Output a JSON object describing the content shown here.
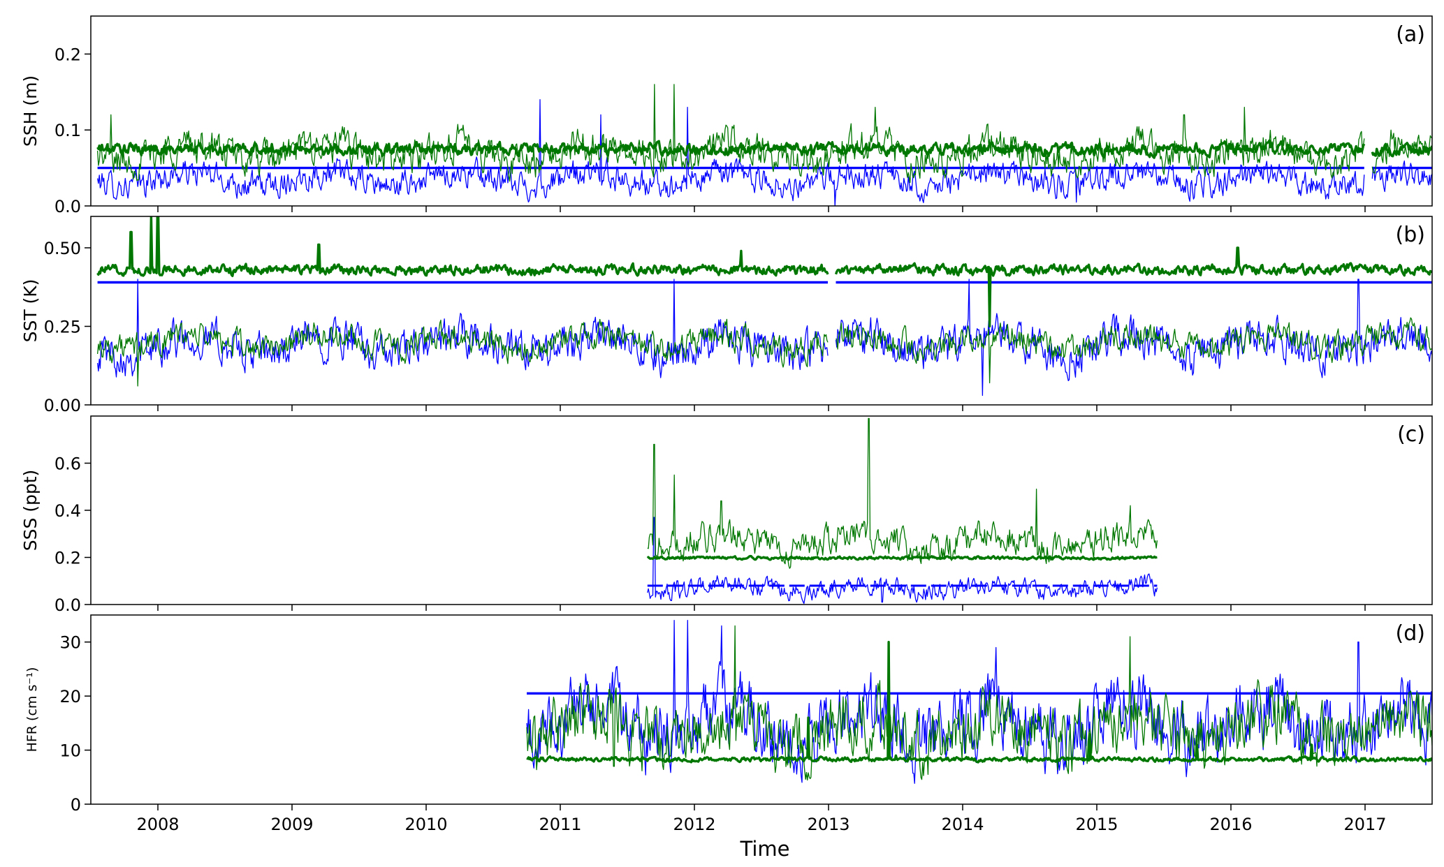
{
  "figure": {
    "xlabel": "Time",
    "x_tick_labels": [
      "2008",
      "2009",
      "2010",
      "2011",
      "2012",
      "2013",
      "2014",
      "2015",
      "2016",
      "2017"
    ]
  },
  "chart_data": [
    {
      "type": "line",
      "panel_tag": "(a)",
      "ylabel": "SSH (m)",
      "xlim": [
        2007.5,
        2017.5
      ],
      "ylim": [
        0.0,
        0.25
      ],
      "y_ticks": [
        0.0,
        0.1,
        0.2
      ],
      "y_tick_labels": [
        "0.0",
        "0.1",
        "0.2"
      ],
      "gaps": [
        [
          2017.0,
          2017.05
        ]
      ],
      "series": [
        {
          "color": "#0000ff",
          "style": "thin",
          "kind": "noisy",
          "x_range": [
            2007.55,
            2017.5
          ],
          "base": 0.035,
          "amp": 0.014,
          "spikes": [
            [
              2010.85,
              0.14
            ],
            [
              2011.3,
              0.12
            ],
            [
              2011.95,
              0.13
            ],
            [
              2013.05,
              0.0
            ],
            [
              2014.85,
              0.005
            ]
          ]
        },
        {
          "color": "#0000ff",
          "style": "thick",
          "kind": "flat",
          "x_range": [
            2007.55,
            2017.5
          ],
          "value": 0.05
        },
        {
          "color": "#007700",
          "style": "thin",
          "kind": "noisy",
          "x_range": [
            2007.55,
            2017.5
          ],
          "base": 0.07,
          "amp": 0.018,
          "spikes": [
            [
              2007.65,
              0.12
            ],
            [
              2011.7,
              0.16
            ],
            [
              2011.85,
              0.16
            ],
            [
              2013.35,
              0.13
            ],
            [
              2015.65,
              0.12
            ],
            [
              2016.1,
              0.13
            ]
          ]
        },
        {
          "color": "#007700",
          "style": "thick",
          "kind": "noisy",
          "x_range": [
            2007.55,
            2017.5
          ],
          "base": 0.075,
          "amp": 0.006,
          "spikes": []
        }
      ]
    },
    {
      "type": "line",
      "panel_tag": "(b)",
      "ylabel": "SST (K)",
      "xlim": [
        2007.5,
        2017.5
      ],
      "ylim": [
        0.0,
        0.6
      ],
      "y_ticks": [
        0.0,
        0.25,
        0.5
      ],
      "y_tick_labels": [
        "0.00",
        "0.25",
        "0.50"
      ],
      "gaps": [
        [
          2013.0,
          2013.05
        ]
      ],
      "series": [
        {
          "color": "#0000ff",
          "style": "thin",
          "kind": "noisy",
          "x_range": [
            2007.55,
            2017.5
          ],
          "base": 0.19,
          "amp": 0.05,
          "spikes": [
            [
              2007.85,
              0.4
            ],
            [
              2011.85,
              0.4
            ],
            [
              2014.15,
              0.03
            ],
            [
              2014.05,
              0.4
            ],
            [
              2016.95,
              0.4
            ]
          ]
        },
        {
          "color": "#0000ff",
          "style": "thick",
          "kind": "flat",
          "x_range": [
            2007.55,
            2017.5
          ],
          "value": 0.39
        },
        {
          "color": "#007700",
          "style": "thin",
          "kind": "noisy",
          "x_range": [
            2007.55,
            2017.5
          ],
          "base": 0.2,
          "amp": 0.035,
          "spikes": [
            [
              2007.85,
              0.06
            ],
            [
              2014.2,
              0.07
            ]
          ]
        },
        {
          "color": "#007700",
          "style": "thick",
          "kind": "noisy",
          "x_range": [
            2007.55,
            2017.5
          ],
          "base": 0.43,
          "amp": 0.012,
          "spikes": [
            [
              2007.8,
              0.55
            ],
            [
              2007.95,
              0.6
            ],
            [
              2008.0,
              0.6
            ],
            [
              2009.2,
              0.51
            ],
            [
              2012.35,
              0.49
            ],
            [
              2016.05,
              0.5
            ],
            [
              2014.2,
              0.25
            ]
          ]
        }
      ]
    },
    {
      "type": "line",
      "panel_tag": "(c)",
      "ylabel": "SSS (ppt)",
      "xlim": [
        2007.5,
        2017.5
      ],
      "ylim": [
        0.0,
        0.8
      ],
      "y_ticks": [
        0.0,
        0.2,
        0.4,
        0.6
      ],
      "y_tick_labels": [
        "0.0",
        "0.2",
        "0.4",
        "0.6"
      ],
      "gaps": [],
      "series": [
        {
          "color": "#0000ff",
          "style": "thin",
          "kind": "noisy",
          "x_range": [
            2011.65,
            2015.45
          ],
          "base": 0.07,
          "amp": 0.03,
          "spikes": [
            [
              2011.7,
              0.37
            ],
            [
              2013.4,
              0.01
            ]
          ]
        },
        {
          "color": "#0000ff",
          "style": "dashed",
          "kind": "flat",
          "x_range": [
            2011.65,
            2015.45
          ],
          "value": 0.08
        },
        {
          "color": "#007700",
          "style": "thin",
          "kind": "noisy",
          "x_range": [
            2011.65,
            2015.45
          ],
          "base": 0.27,
          "amp": 0.05,
          "spikes": [
            [
              2011.7,
              0.68
            ],
            [
              2011.85,
              0.55
            ],
            [
              2012.2,
              0.44
            ],
            [
              2013.3,
              0.79
            ],
            [
              2014.55,
              0.49
            ],
            [
              2015.25,
              0.42
            ]
          ]
        },
        {
          "color": "#007700",
          "style": "thick",
          "kind": "noisy",
          "x_range": [
            2011.65,
            2015.45
          ],
          "base": 0.198,
          "amp": 0.005,
          "spikes": []
        }
      ]
    },
    {
      "type": "line",
      "panel_tag": "(d)",
      "ylabel": "HFR (cm s⁻¹)",
      "xlim": [
        2007.5,
        2017.5
      ],
      "ylim": [
        0,
        35
      ],
      "y_ticks": [
        0,
        10,
        20,
        30
      ],
      "y_tick_labels": [
        "0",
        "10",
        "20",
        "30"
      ],
      "gaps": [],
      "series": [
        {
          "color": "#0000ff",
          "style": "thin",
          "kind": "noisy",
          "x_range": [
            2010.75,
            2017.5
          ],
          "base": 15,
          "amp": 5,
          "spikes": [
            [
              2011.85,
              34
            ],
            [
              2011.95,
              34
            ],
            [
              2012.2,
              33
            ],
            [
              2014.25,
              29
            ],
            [
              2016.95,
              30
            ]
          ]
        },
        {
          "color": "#0000ff",
          "style": "thick",
          "kind": "flat",
          "x_range": [
            2010.75,
            2017.5
          ],
          "value": 20.5
        },
        {
          "color": "#007700",
          "style": "thin",
          "kind": "noisy",
          "x_range": [
            2010.75,
            2017.5
          ],
          "base": 14,
          "amp": 4.5,
          "spikes": [
            [
              2011.4,
              7
            ],
            [
              2015.25,
              31
            ],
            [
              2012.3,
              33
            ]
          ]
        },
        {
          "color": "#007700",
          "style": "thick",
          "kind": "noisy",
          "x_range": [
            2010.75,
            2017.5
          ],
          "base": 8.3,
          "amp": 0.3,
          "spikes": [
            [
              2013.45,
              30
            ],
            [
              2013.5,
              9
            ],
            [
              2012.85,
              16
            ],
            [
              2014.95,
              13
            ],
            [
              2015.75,
              11
            ],
            [
              2016.6,
              11
            ]
          ]
        }
      ]
    }
  ]
}
